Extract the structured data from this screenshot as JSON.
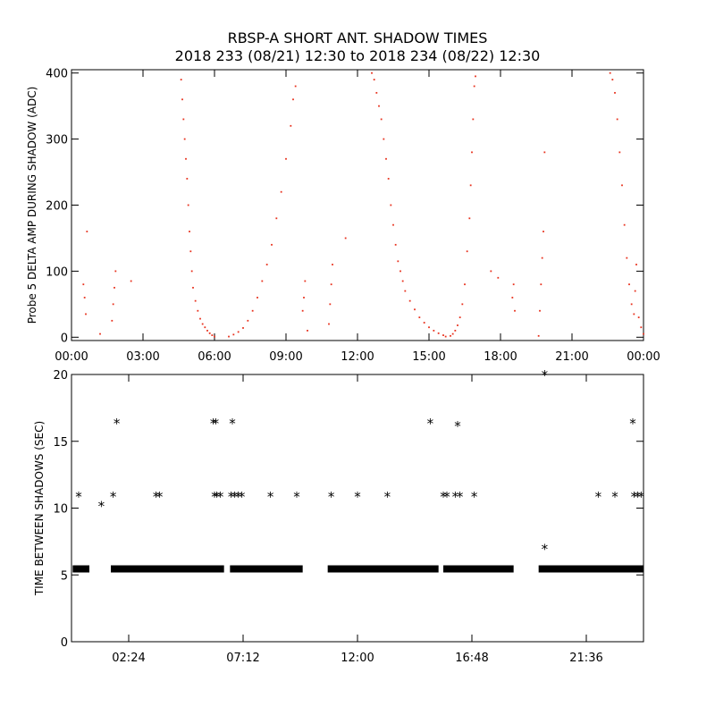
{
  "title": "RBSP-A SHORT ANT. SHADOW TIMES",
  "subtitle": "2018 233 (08/21) 12:30 to 2018 234 (08/22) 12:30",
  "colors": {
    "top_points": "#e8321e",
    "bottom_points": "#000000",
    "axes": "#000000"
  },
  "chart_data": [
    {
      "type": "scatter",
      "ylabel": "Probe 5 DELTA AMP DURING SHADOW (ADC)",
      "xlim": [
        0,
        24
      ],
      "ylim": [
        -5,
        405
      ],
      "x_ticks": [
        0,
        3,
        6,
        9,
        12,
        15,
        18,
        21,
        24
      ],
      "x_tick_labels": [
        "00:00",
        "03:00",
        "06:00",
        "09:00",
        "12:00",
        "15:00",
        "18:00",
        "21:00",
        "00:00"
      ],
      "y_ticks": [
        0,
        100,
        200,
        300,
        400
      ],
      "y_tick_labels": [
        "0",
        "100",
        "200",
        "300",
        "400"
      ],
      "marker": "dot",
      "color": "#e8321e",
      "points": [
        [
          0.5,
          80
        ],
        [
          0.55,
          60
        ],
        [
          0.6,
          35
        ],
        [
          0.65,
          160
        ],
        [
          1.2,
          5
        ],
        [
          1.7,
          25
        ],
        [
          1.75,
          50
        ],
        [
          1.8,
          75
        ],
        [
          1.85,
          100
        ],
        [
          2.5,
          85
        ],
        [
          4.6,
          390
        ],
        [
          4.65,
          360
        ],
        [
          4.7,
          330
        ],
        [
          4.75,
          300
        ],
        [
          4.8,
          270
        ],
        [
          4.85,
          240
        ],
        [
          4.9,
          200
        ],
        [
          4.95,
          160
        ],
        [
          5.0,
          130
        ],
        [
          5.05,
          100
        ],
        [
          5.1,
          75
        ],
        [
          5.2,
          55
        ],
        [
          5.3,
          40
        ],
        [
          5.4,
          28
        ],
        [
          5.5,
          20
        ],
        [
          5.6,
          15
        ],
        [
          5.7,
          10
        ],
        [
          5.8,
          6
        ],
        [
          5.9,
          3
        ],
        [
          6.0,
          1
        ],
        [
          6.6,
          1
        ],
        [
          6.8,
          4
        ],
        [
          7.0,
          8
        ],
        [
          7.2,
          14
        ],
        [
          7.4,
          25
        ],
        [
          7.6,
          40
        ],
        [
          7.8,
          60
        ],
        [
          8.0,
          85
        ],
        [
          8.2,
          110
        ],
        [
          8.4,
          140
        ],
        [
          8.6,
          180
        ],
        [
          8.8,
          220
        ],
        [
          9.0,
          270
        ],
        [
          9.2,
          320
        ],
        [
          9.3,
          360
        ],
        [
          9.4,
          380
        ],
        [
          9.7,
          40
        ],
        [
          9.75,
          60
        ],
        [
          9.8,
          85
        ],
        [
          9.9,
          10
        ],
        [
          10.8,
          20
        ],
        [
          10.85,
          50
        ],
        [
          10.9,
          80
        ],
        [
          10.95,
          110
        ],
        [
          11.5,
          150
        ],
        [
          12.6,
          400
        ],
        [
          12.7,
          390
        ],
        [
          12.8,
          370
        ],
        [
          12.9,
          350
        ],
        [
          13.0,
          330
        ],
        [
          13.1,
          300
        ],
        [
          13.2,
          270
        ],
        [
          13.3,
          240
        ],
        [
          13.4,
          200
        ],
        [
          13.5,
          170
        ],
        [
          13.6,
          140
        ],
        [
          13.7,
          115
        ],
        [
          13.8,
          100
        ],
        [
          13.9,
          85
        ],
        [
          14.0,
          70
        ],
        [
          14.2,
          55
        ],
        [
          14.4,
          42
        ],
        [
          14.6,
          30
        ],
        [
          14.8,
          22
        ],
        [
          15.0,
          15
        ],
        [
          15.2,
          10
        ],
        [
          15.4,
          6
        ],
        [
          15.6,
          3
        ],
        [
          15.7,
          1
        ],
        [
          15.9,
          2
        ],
        [
          16.0,
          5
        ],
        [
          16.1,
          10
        ],
        [
          16.2,
          18
        ],
        [
          16.3,
          30
        ],
        [
          16.4,
          50
        ],
        [
          16.5,
          80
        ],
        [
          16.6,
          130
        ],
        [
          16.7,
          180
        ],
        [
          16.75,
          230
        ],
        [
          16.8,
          280
        ],
        [
          16.85,
          330
        ],
        [
          16.9,
          380
        ],
        [
          16.95,
          395
        ],
        [
          17.6,
          100
        ],
        [
          17.9,
          90
        ],
        [
          18.5,
          60
        ],
        [
          18.55,
          80
        ],
        [
          18.6,
          40
        ],
        [
          19.6,
          2
        ],
        [
          19.65,
          40
        ],
        [
          19.7,
          80
        ],
        [
          19.75,
          120
        ],
        [
          19.8,
          160
        ],
        [
          19.85,
          280
        ],
        [
          22.6,
          400
        ],
        [
          22.7,
          390
        ],
        [
          22.8,
          370
        ],
        [
          22.9,
          330
        ],
        [
          23.0,
          280
        ],
        [
          23.1,
          230
        ],
        [
          23.2,
          170
        ],
        [
          23.3,
          120
        ],
        [
          23.4,
          80
        ],
        [
          23.5,
          50
        ],
        [
          23.6,
          35
        ],
        [
          23.65,
          70
        ],
        [
          23.7,
          110
        ],
        [
          23.8,
          30
        ],
        [
          23.9,
          15
        ],
        [
          24.0,
          5
        ]
      ]
    },
    {
      "type": "scatter",
      "ylabel": "TIME BETWEEN SHADOWS (SEC)",
      "xlim": [
        0,
        24
      ],
      "ylim": [
        0,
        20
      ],
      "x_ticks": [
        2.4,
        7.2,
        12.0,
        16.8,
        21.6
      ],
      "x_tick_labels": [
        "02:24",
        "07:12",
        "12:00",
        "16:48",
        "21:36"
      ],
      "y_ticks": [
        0,
        5,
        10,
        15,
        20
      ],
      "y_tick_labels": [
        "0",
        "5",
        "10",
        "15",
        "20"
      ],
      "marker": "asterisk",
      "color": "#000000",
      "bands": [
        {
          "x_start": 0.05,
          "x_end": 0.75,
          "y": 5.45
        },
        {
          "x_start": 1.65,
          "x_end": 6.4,
          "y": 5.45
        },
        {
          "x_start": 6.65,
          "x_end": 9.7,
          "y": 5.45
        },
        {
          "x_start": 10.75,
          "x_end": 15.4,
          "y": 5.45
        },
        {
          "x_start": 15.6,
          "x_end": 18.55,
          "y": 5.45
        },
        {
          "x_start": 19.6,
          "x_end": 24.0,
          "y": 5.45
        }
      ],
      "points": [
        [
          0.3,
          10.9
        ],
        [
          1.25,
          10.2
        ],
        [
          1.75,
          10.9
        ],
        [
          1.9,
          16.4
        ],
        [
          3.55,
          10.9
        ],
        [
          3.7,
          10.9
        ],
        [
          5.95,
          16.4
        ],
        [
          6.05,
          16.4
        ],
        [
          6.0,
          10.9
        ],
        [
          6.1,
          10.9
        ],
        [
          6.25,
          10.9
        ],
        [
          6.7,
          10.9
        ],
        [
          6.75,
          16.4
        ],
        [
          6.85,
          10.9
        ],
        [
          7.0,
          10.9
        ],
        [
          7.15,
          10.9
        ],
        [
          8.35,
          10.9
        ],
        [
          9.45,
          10.9
        ],
        [
          10.9,
          10.9
        ],
        [
          12.0,
          10.9
        ],
        [
          13.25,
          10.9
        ],
        [
          15.05,
          16.4
        ],
        [
          15.6,
          10.9
        ],
        [
          15.75,
          10.9
        ],
        [
          16.1,
          10.9
        ],
        [
          16.2,
          16.2
        ],
        [
          16.3,
          10.9
        ],
        [
          16.9,
          10.9
        ],
        [
          19.85,
          20.2
        ],
        [
          19.85,
          7.0
        ],
        [
          22.1,
          10.9
        ],
        [
          22.8,
          10.9
        ],
        [
          23.55,
          16.4
        ],
        [
          23.6,
          10.9
        ],
        [
          23.75,
          10.9
        ],
        [
          23.9,
          10.9
        ]
      ]
    }
  ]
}
